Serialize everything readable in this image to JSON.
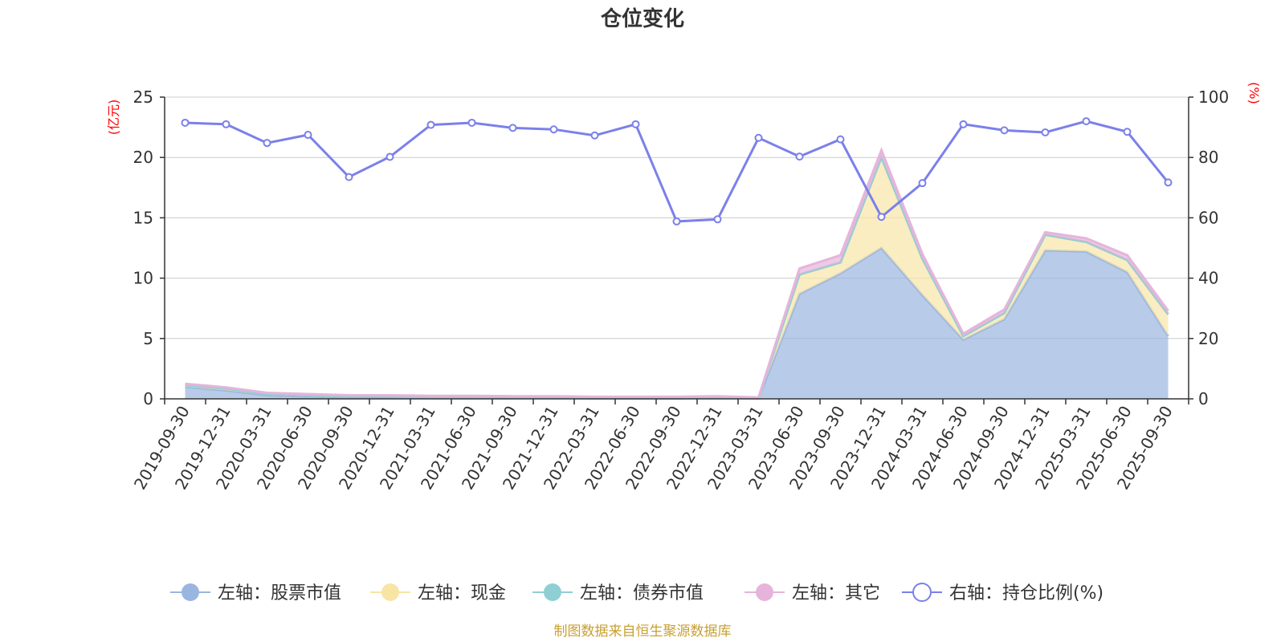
{
  "chart_data": {
    "type": "area",
    "title": "仓位变化",
    "left_unit": "(亿元)",
    "right_unit": "(%)",
    "left_ylim": [
      0,
      25
    ],
    "left_ticks": [
      0,
      5,
      10,
      15,
      20,
      25
    ],
    "right_ylim": [
      0,
      100
    ],
    "right_ticks": [
      0,
      20,
      40,
      60,
      80,
      100
    ],
    "grid": true,
    "legend_position": "bottom",
    "categories": [
      "2019-09-30",
      "2019-12-31",
      "2020-03-31",
      "2020-06-30",
      "2020-09-30",
      "2020-12-31",
      "2021-03-31",
      "2021-06-30",
      "2021-09-30",
      "2021-12-31",
      "2022-03-31",
      "2022-06-30",
      "2022-09-30",
      "2022-12-31",
      "2023-03-31",
      "2023-06-30",
      "2023-09-30",
      "2023-12-31",
      "2024-03-31",
      "2024-06-30",
      "2024-09-30",
      "2024-12-31",
      "2025-03-31",
      "2025-06-30",
      "2025-09-30"
    ],
    "series": [
      {
        "name": "左轴：股票市值",
        "axis": "left",
        "kind": "stacked-area",
        "color": "#9ab6e0",
        "values": [
          1.0,
          0.7,
          0.3,
          0.2,
          0.15,
          0.15,
          0.1,
          0.1,
          0.1,
          0.1,
          0.05,
          0.05,
          0.05,
          0.1,
          0.05,
          8.7,
          10.4,
          12.5,
          8.6,
          4.9,
          6.6,
          12.3,
          12.2,
          10.5,
          5.2
        ]
      },
      {
        "name": "左轴：现金",
        "axis": "left",
        "kind": "stacked-area",
        "color": "#f8e5a6",
        "values": [
          0.15,
          0.15,
          0.1,
          0.1,
          0.05,
          0.05,
          0.05,
          0.05,
          0.02,
          0.02,
          0.02,
          0.02,
          0.02,
          0.02,
          0.02,
          1.6,
          0.9,
          7.5,
          3.0,
          0.3,
          0.5,
          1.3,
          0.8,
          1.0,
          1.8
        ]
      },
      {
        "name": "左轴：债券市值",
        "axis": "left",
        "kind": "stacked-area",
        "color": "#8fcfd3",
        "values": [
          0,
          0,
          0,
          0,
          0,
          0,
          0,
          0,
          0,
          0,
          0,
          0,
          0,
          0,
          0,
          0,
          0,
          0,
          0,
          0,
          0,
          0,
          0,
          0,
          0
        ]
      },
      {
        "name": "左轴：其它",
        "axis": "left",
        "kind": "stacked-area",
        "color": "#e6b4db",
        "values": [
          0.1,
          0.1,
          0.1,
          0.1,
          0.1,
          0.1,
          0.1,
          0.1,
          0.1,
          0.1,
          0.1,
          0.1,
          0.1,
          0.1,
          0.05,
          0.5,
          0.6,
          0.6,
          0.4,
          0.2,
          0.3,
          0.2,
          0.3,
          0.4,
          0.3
        ]
      },
      {
        "name": "右轴：持仓比例(%)",
        "axis": "right",
        "kind": "line",
        "color": "#7b80ea",
        "values": [
          91.5,
          91.0,
          84.8,
          87.5,
          73.5,
          80.2,
          90.8,
          91.5,
          89.8,
          89.3,
          87.3,
          91.0,
          58.8,
          59.5,
          86.5,
          80.3,
          86.0,
          60.3,
          71.5,
          91.0,
          89.0,
          88.3,
          92.0,
          88.5,
          71.7
        ]
      }
    ],
    "source": "制图数据来自恒生聚源数据库"
  }
}
